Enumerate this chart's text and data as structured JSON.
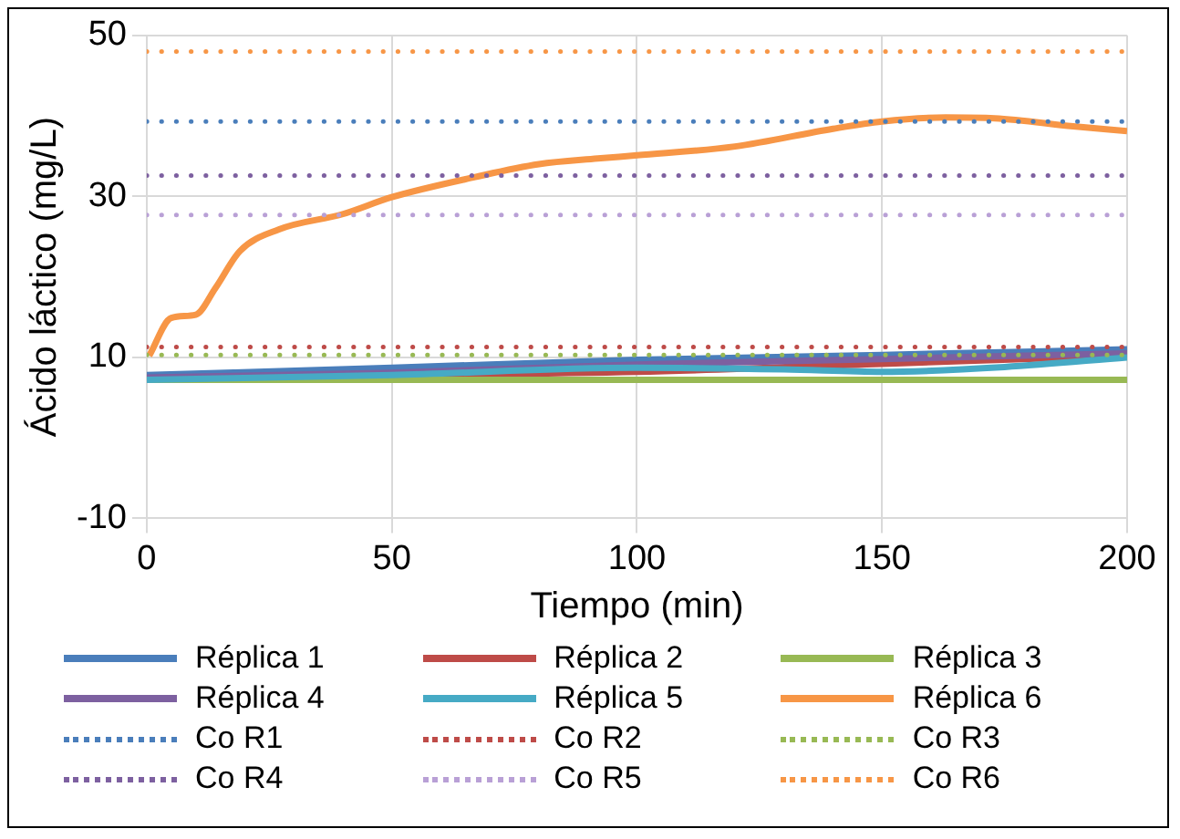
{
  "chart_data": {
    "type": "line",
    "xlabel": "Tiempo (min)",
    "ylabel": "Ácido láctico (mg/L)",
    "xlim": [
      0,
      200
    ],
    "xticks": [
      0,
      50,
      100,
      150,
      200
    ],
    "ylim": [
      -10,
      50
    ],
    "yticks": [
      -10,
      10,
      30,
      50
    ],
    "grid": true,
    "legend": "bottom",
    "marker": "none",
    "series": [
      {
        "name": "Réplica 1",
        "color": "#4a7ebb",
        "line_style": "solid",
        "x": [
          0,
          50,
          100,
          150,
          200
        ],
        "values": [
          7.8,
          8.7,
          9.7,
          10.3,
          11
        ]
      },
      {
        "name": "Réplica 2",
        "color": "#be4b48",
        "line_style": "solid",
        "x": [
          0,
          50,
          100,
          150,
          200
        ],
        "values": [
          7.4,
          7.8,
          8.2,
          9.2,
          10.2
        ]
      },
      {
        "name": "Réplica 3",
        "color": "#98b954",
        "line_style": "solid",
        "x": [
          0,
          50,
          100,
          150,
          200
        ],
        "values": [
          7.2,
          7.2,
          7.2,
          7.2,
          7.2
        ]
      },
      {
        "name": "Réplica 4",
        "color": "#7d60a0",
        "line_style": "solid",
        "x": [
          0,
          50,
          100,
          150,
          200
        ],
        "values": [
          7.5,
          8.1,
          9.1,
          9.8,
          10.5
        ]
      },
      {
        "name": "Réplica 5",
        "color": "#46aac5",
        "line_style": "solid",
        "x": [
          0,
          50,
          100,
          130,
          150,
          175,
          200
        ],
        "values": [
          7.2,
          7.8,
          8.7,
          8.5,
          8.2,
          8.8,
          10
        ]
      },
      {
        "name": "Réplica 6",
        "color": "#f79646",
        "line_style": "solid",
        "x": [
          0.5,
          5,
          10,
          14,
          19,
          27,
          40,
          50,
          67,
          80,
          92,
          100,
          120,
          140,
          150,
          163,
          173,
          189,
          200
        ],
        "values": [
          10.2,
          14.9,
          15.3,
          18.6,
          23.2,
          25.9,
          27.8,
          29.9,
          32.4,
          34,
          34.7,
          35.1,
          36.2,
          38.4,
          39.3,
          39.8,
          39.7,
          38.7,
          38.1
        ]
      },
      {
        "name": "Co R1",
        "color": "#4a7ebb",
        "line_style": "dotted",
        "x": [
          0,
          200
        ],
        "values": [
          39.3,
          39.3
        ]
      },
      {
        "name": "Co R2",
        "color": "#be4b48",
        "line_style": "dotted",
        "x": [
          0,
          200
        ],
        "values": [
          11.3,
          11.3
        ]
      },
      {
        "name": "Co R3",
        "color": "#98b954",
        "line_style": "dotted",
        "x": [
          0,
          200
        ],
        "values": [
          10.3,
          10.3
        ]
      },
      {
        "name": "Co R4",
        "color": "#7d60a0",
        "line_style": "dotted",
        "x": [
          0,
          200
        ],
        "values": [
          32.6,
          32.6
        ]
      },
      {
        "name": "Co R5",
        "color": "#b9a0d6",
        "line_style": "dotted",
        "x": [
          0,
          200
        ],
        "values": [
          27.7,
          27.7
        ]
      },
      {
        "name": "Co R6",
        "color": "#f79646",
        "line_style": "dotted",
        "x": [
          0,
          200
        ],
        "values": [
          48,
          48
        ]
      }
    ]
  }
}
